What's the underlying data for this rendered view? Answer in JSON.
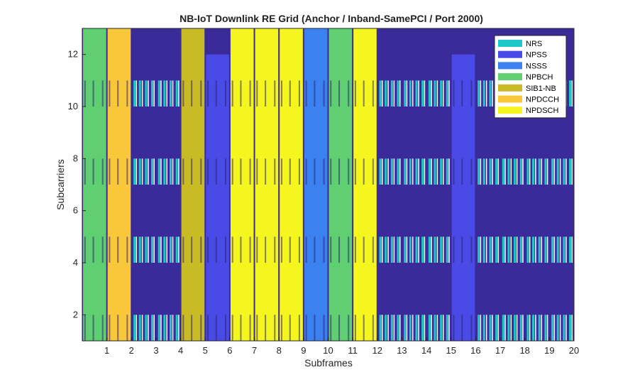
{
  "chart_data": {
    "type": "heatmap",
    "title": "NB-IoT Downlink RE Grid (Anchor / Inband-SamePCI / Port 2000)",
    "xlabel": "Subframes",
    "ylabel": "Subcarriers",
    "xlim": [
      0,
      20
    ],
    "ylim": [
      1,
      13
    ],
    "xticks": [
      1,
      2,
      3,
      4,
      5,
      6,
      7,
      8,
      9,
      10,
      11,
      12,
      13,
      14,
      15,
      16,
      17,
      18,
      19,
      20
    ],
    "yticks": [
      2,
      4,
      6,
      8,
      10,
      12
    ],
    "background_color": "#3a2a9a",
    "legend_position": "top-right",
    "legend": [
      {
        "name": "NRS",
        "color": "#1fc8c8"
      },
      {
        "name": "NPSS",
        "color": "#4a4ae6"
      },
      {
        "name": "NSSS",
        "color": "#3b82f0"
      },
      {
        "name": "NPBCH",
        "color": "#5fcf72"
      },
      {
        "name": "SIB1-NB",
        "color": "#c9bb26"
      },
      {
        "name": "NPDCCH",
        "color": "#f9c83a"
      },
      {
        "name": "NPDSCH",
        "color": "#f5f520"
      }
    ],
    "channel_subframes": [
      {
        "channel": "NPBCH",
        "subframes": [
          1,
          11
        ],
        "subcarriers": [
          1,
          13
        ]
      },
      {
        "channel": "NPDCCH",
        "subframes": [
          2
        ],
        "subcarriers": [
          1,
          13
        ]
      },
      {
        "channel": "SIB1-NB",
        "subframes": [
          5
        ],
        "subcarriers": [
          1,
          13
        ]
      },
      {
        "channel": "NPSS",
        "subframes": [
          6,
          16
        ],
        "subcarriers": [
          1,
          12
        ]
      },
      {
        "channel": "NPDSCH",
        "subframes": [
          7,
          8,
          9,
          12
        ],
        "subcarriers": [
          1,
          13
        ]
      },
      {
        "channel": "NSSS",
        "subframes": [
          10
        ],
        "subcarriers": [
          1,
          13
        ]
      }
    ],
    "nrs_subcarrier_bands": [
      [
        1,
        2
      ],
      [
        4,
        5
      ],
      [
        7,
        8
      ],
      [
        10,
        11
      ]
    ]
  }
}
